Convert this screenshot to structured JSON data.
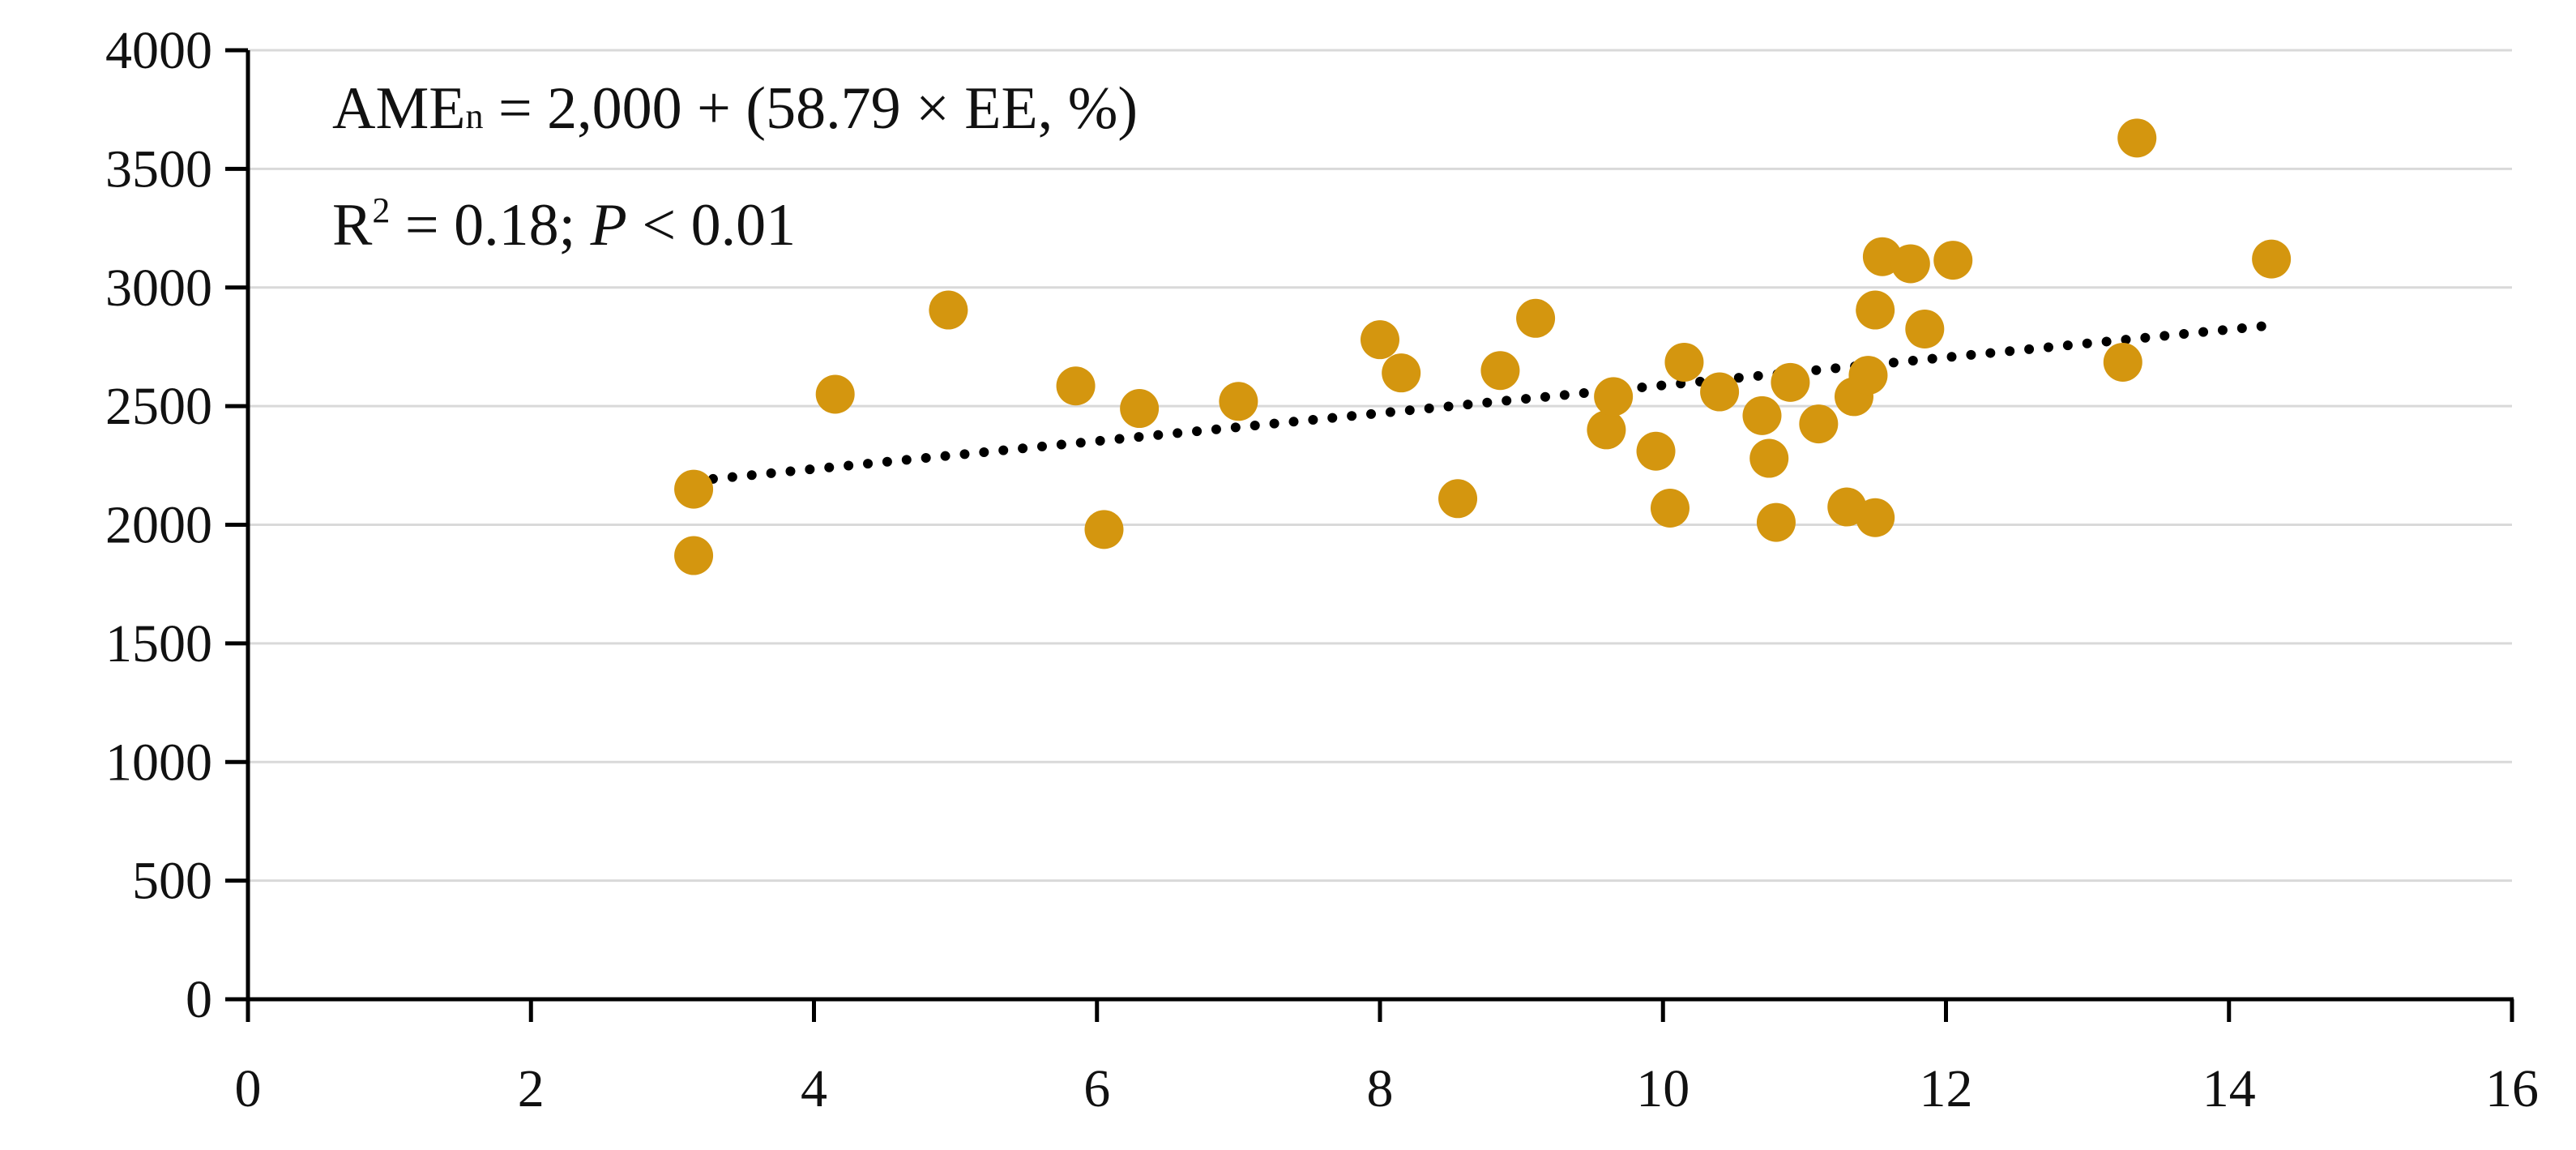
{
  "chart_data": {
    "type": "scatter",
    "title": "",
    "xlabel": "",
    "ylabel": "",
    "xlim": [
      0,
      16
    ],
    "ylim": [
      0,
      4000
    ],
    "x_ticks": [
      0,
      2,
      4,
      6,
      8,
      10,
      12,
      14,
      16
    ],
    "y_ticks": [
      0,
      500,
      1000,
      1500,
      2000,
      2500,
      3000,
      3500,
      4000
    ],
    "grid": "horizontal",
    "point_color": "#D4960F",
    "trendline_color": "#000000",
    "series": [
      {
        "name": "AMEn",
        "points": [
          {
            "x": 3.15,
            "y": 2150
          },
          {
            "x": 3.15,
            "y": 1870
          },
          {
            "x": 4.15,
            "y": 2550
          },
          {
            "x": 4.95,
            "y": 2905
          },
          {
            "x": 5.85,
            "y": 2585
          },
          {
            "x": 6.05,
            "y": 1980
          },
          {
            "x": 6.3,
            "y": 2490
          },
          {
            "x": 7.0,
            "y": 2520
          },
          {
            "x": 8.0,
            "y": 2780
          },
          {
            "x": 8.15,
            "y": 2640
          },
          {
            "x": 8.55,
            "y": 2110
          },
          {
            "x": 8.85,
            "y": 2650
          },
          {
            "x": 9.1,
            "y": 2870
          },
          {
            "x": 9.6,
            "y": 2400
          },
          {
            "x": 9.65,
            "y": 2540
          },
          {
            "x": 9.95,
            "y": 2310
          },
          {
            "x": 10.05,
            "y": 2070
          },
          {
            "x": 10.15,
            "y": 2685
          },
          {
            "x": 10.4,
            "y": 2560
          },
          {
            "x": 10.7,
            "y": 2460
          },
          {
            "x": 10.75,
            "y": 2280
          },
          {
            "x": 10.8,
            "y": 2010
          },
          {
            "x": 10.9,
            "y": 2600
          },
          {
            "x": 11.1,
            "y": 2425
          },
          {
            "x": 11.3,
            "y": 2075
          },
          {
            "x": 11.35,
            "y": 2540
          },
          {
            "x": 11.45,
            "y": 2630
          },
          {
            "x": 11.5,
            "y": 2905
          },
          {
            "x": 11.5,
            "y": 2030
          },
          {
            "x": 11.55,
            "y": 3130
          },
          {
            "x": 11.75,
            "y": 3100
          },
          {
            "x": 11.85,
            "y": 2825
          },
          {
            "x": 12.05,
            "y": 3115
          },
          {
            "x": 13.25,
            "y": 2685
          },
          {
            "x": 13.35,
            "y": 3630
          },
          {
            "x": 14.3,
            "y": 3120
          }
        ]
      }
    ],
    "trendline": {
      "style": "dotted",
      "intercept": 2000,
      "slope": 58.79,
      "x_range": [
        3.15,
        14.3
      ]
    },
    "annotations": {
      "equation": {
        "lhs_main": "AME",
        "lhs_sub": "n",
        "rhs": " = 2,000 + (58.79 × EE, %)"
      },
      "stats": {
        "r_main": "R",
        "r_sup": "2",
        "r_rest": " = 0.18; ",
        "p_label": "P",
        "p_rest": " < 0.01"
      }
    }
  }
}
